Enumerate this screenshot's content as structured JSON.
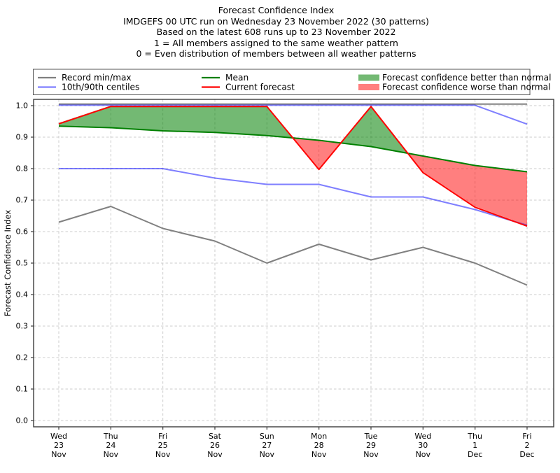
{
  "colors": {
    "record": "#808080",
    "centiles": "rgba(0,0,255,0.5)",
    "mean": "#008000",
    "forecast": "#ff0000",
    "fill_better": "rgba(0,128,0,0.55)",
    "fill_worse": "rgba(255,0,0,0.5)",
    "grid": "#cccccc",
    "spine": "#3c3c3c",
    "text": "#000000",
    "legend_border": "#555555",
    "background": "#ffffff"
  },
  "legend": {
    "entries": [
      {
        "label": "Record min/max",
        "swatch": "line",
        "color": "record"
      },
      {
        "label": "10th/90th centiles",
        "swatch": "line",
        "color": "centiles"
      },
      {
        "label": "Mean",
        "swatch": "line",
        "color": "mean"
      },
      {
        "label": "Current forecast",
        "swatch": "line",
        "color": "forecast"
      },
      {
        "label": "Forecast confidence better than normal",
        "swatch": "patch",
        "color": "fill_better"
      },
      {
        "label": "Forecast confidence worse than normal",
        "swatch": "patch",
        "color": "fill_worse"
      }
    ]
  },
  "chart_data": {
    "type": "line",
    "title": "Forecast Confidence Index",
    "subtitle_lines": [
      "IMDGEFS 00 UTC run on Wednesday 23 November 2022 (30 patterns)",
      "Based on the latest 608 runs up to 23 November 2022",
      "1 = All members assigned to the same weather pattern",
      "0 = Even distribution of members between all weather patterns"
    ],
    "xlabel": "",
    "ylabel": "Forecast Confidence Index",
    "ylim": [
      0.0,
      1.0
    ],
    "grid": true,
    "legend_position": "top",
    "categories": [
      "Wed 23 Nov",
      "Thu 24 Nov",
      "Fri 25 Nov",
      "Sat 26 Nov",
      "Sun 27 Nov",
      "Mon 28 Nov",
      "Tue 29 Nov",
      "Wed 30 Nov",
      "Thu 1 Dec",
      "Fri 2 Dec"
    ],
    "x_tick_lines": [
      [
        "Wed",
        "23",
        "Nov"
      ],
      [
        "Thu",
        "24",
        "Nov"
      ],
      [
        "Fri",
        "25",
        "Nov"
      ],
      [
        "Sat",
        "26",
        "Nov"
      ],
      [
        "Sun",
        "27",
        "Nov"
      ],
      [
        "Mon",
        "28",
        "Nov"
      ],
      [
        "Tue",
        "29",
        "Nov"
      ],
      [
        "Wed",
        "30",
        "Nov"
      ],
      [
        "Thu",
        "1",
        "Dec"
      ],
      [
        "Fri",
        "2",
        "Dec"
      ]
    ],
    "y_ticks": [
      "0.0",
      "0.1",
      "0.2",
      "0.3",
      "0.4",
      "0.5",
      "0.6",
      "0.7",
      "0.8",
      "0.9",
      "1.0"
    ],
    "series": [
      {
        "name": "Record max",
        "values": [
          1.0,
          1.0,
          1.0,
          1.0,
          1.0,
          1.0,
          1.0,
          1.0,
          1.0,
          1.0
        ]
      },
      {
        "name": "Record min",
        "values": [
          0.63,
          0.68,
          0.61,
          0.57,
          0.5,
          0.56,
          0.51,
          0.55,
          0.5,
          0.43
        ]
      },
      {
        "name": "90th centile",
        "values": [
          1.0,
          1.0,
          1.0,
          1.0,
          1.0,
          1.0,
          1.0,
          1.0,
          1.0,
          0.94
        ]
      },
      {
        "name": "10th centile",
        "values": [
          0.8,
          0.8,
          0.8,
          0.77,
          0.75,
          0.75,
          0.71,
          0.71,
          0.67,
          0.62
        ]
      },
      {
        "name": "Mean",
        "values": [
          0.935,
          0.93,
          0.92,
          0.915,
          0.905,
          0.89,
          0.87,
          0.84,
          0.81,
          0.79
        ]
      },
      {
        "name": "Current forecast",
        "values": [
          0.945,
          1.0,
          1.0,
          1.0,
          1.0,
          0.8,
          1.0,
          0.79,
          0.68,
          0.62
        ]
      }
    ],
    "fills": [
      {
        "name": "Forecast confidence better than normal",
        "between": [
          "Current forecast",
          "Mean"
        ],
        "when": "above",
        "color": "fill_better"
      },
      {
        "name": "Forecast confidence worse than normal",
        "between": [
          "Current forecast",
          "Mean"
        ],
        "when": "below",
        "color": "fill_worse"
      }
    ]
  }
}
